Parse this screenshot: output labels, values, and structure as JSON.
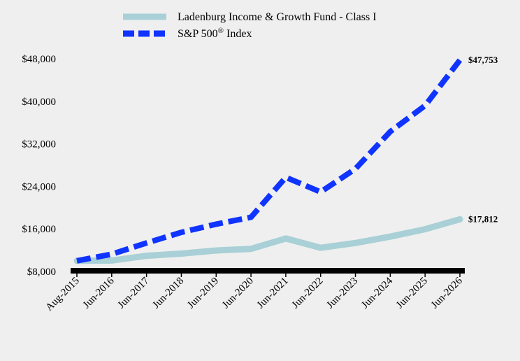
{
  "chart_data": {
    "type": "line",
    "title": "",
    "xlabel": "",
    "ylabel": "",
    "x": [
      "Aug-2015",
      "Jun-2016",
      "Jun-2017",
      "Jun-2018",
      "Jun-2019",
      "Jun-2020",
      "Jun-2021",
      "Jun-2022",
      "Jun-2023",
      "Jun-2024",
      "Jun-2025",
      "Jun-2026"
    ],
    "ylim": [
      8000,
      48000
    ],
    "yticks": [
      8000,
      16000,
      24000,
      32000,
      40000,
      48000
    ],
    "ytick_labels": [
      "$8,000",
      "$16,000",
      "$24,000",
      "$32,000",
      "$40,000",
      "$48,000"
    ],
    "grid": false,
    "legend_position": "top",
    "series": [
      {
        "name": "Ladenburg Income & Growth Fund - Class I",
        "name_main": "Ladenburg Income & Growth Fund - Class I",
        "name_sup": "",
        "name_after": "",
        "color": "#a8d0d6",
        "style": "solid",
        "values": [
          10000,
          10050,
          10950,
          11350,
          11950,
          12250,
          14200,
          12450,
          13350,
          14550,
          15950,
          17812
        ],
        "end_label": "$17,812"
      },
      {
        "name": "S&P 500® Index",
        "name_main": "S&P 500",
        "name_sup": "®",
        "name_after": " Index",
        "color": "#1034ff",
        "style": "dashed",
        "values": [
          10000,
          11250,
          13350,
          15350,
          16900,
          18200,
          25700,
          22950,
          27300,
          34300,
          39200,
          47753
        ],
        "end_label": "$47,753"
      }
    ]
  }
}
